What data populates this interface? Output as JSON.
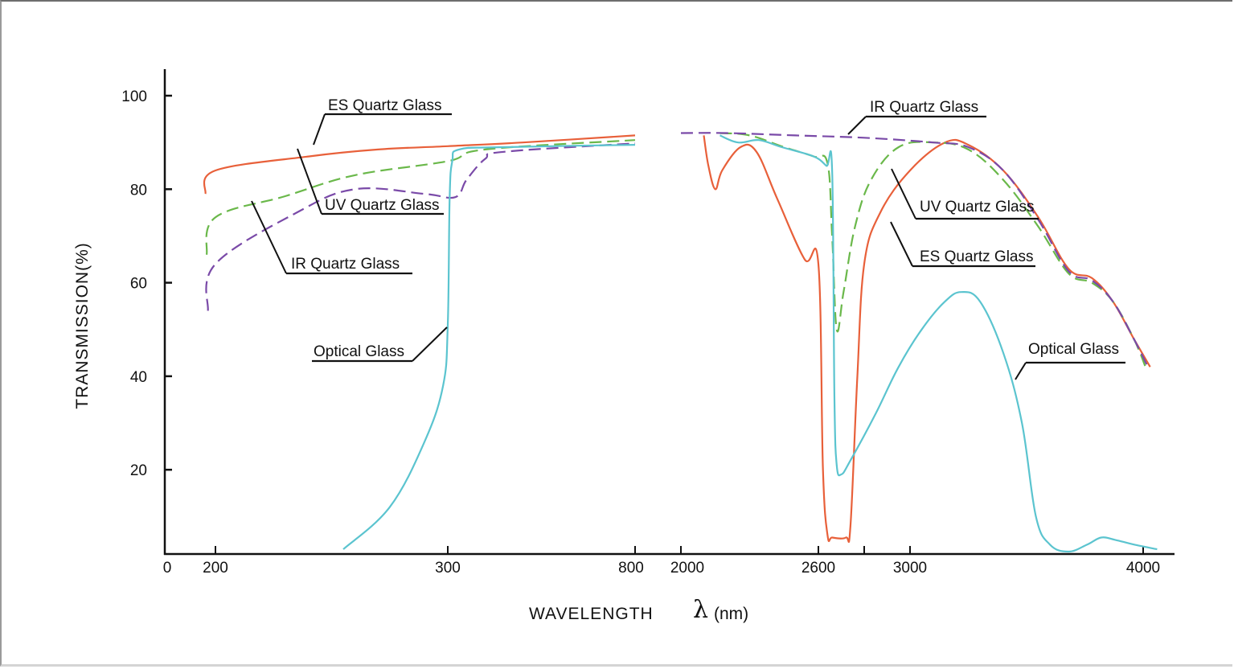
{
  "chart_data": {
    "type": "line",
    "title": "",
    "xlabel": "WAVELENGTH",
    "xlabel_symbol": "λ",
    "xlabel_unit": "(nm)",
    "ylabel": "TRANSMISSION(%)",
    "ylim": [
      0,
      100
    ],
    "y_ticks": [
      20,
      40,
      60,
      80,
      100
    ],
    "x_axis_broken": true,
    "x_tick_labels": [
      "0",
      "200",
      "300",
      "800",
      "2000",
      "2600",
      "3000",
      "4000"
    ],
    "x_ticks_unlabeled": [
      2800
    ],
    "grid": false,
    "legend": "none (inline annotations)",
    "series": [
      {
        "name": "ES Quartz Glass",
        "color": "#e8603a",
        "style": "solid",
        "points": [
          [
            160,
            79
          ],
          [
            200,
            84
          ],
          [
            240,
            87
          ],
          [
            270,
            88.5
          ],
          [
            300,
            89.2
          ],
          [
            500,
            90
          ],
          [
            800,
            91.5
          ],
          [
            2100,
            91.5
          ],
          [
            2120,
            85
          ],
          [
            2150,
            80
          ],
          [
            2180,
            84
          ],
          [
            2260,
            89
          ],
          [
            2330,
            88
          ],
          [
            2420,
            78
          ],
          [
            2540,
            65
          ],
          [
            2600,
            64
          ],
          [
            2620,
            20
          ],
          [
            2640,
            6
          ],
          [
            2660,
            5.5
          ],
          [
            2720,
            5.5
          ],
          [
            2740,
            8
          ],
          [
            2770,
            40
          ],
          [
            2800,
            64
          ],
          [
            2870,
            75
          ],
          [
            3000,
            84
          ],
          [
            3150,
            90
          ],
          [
            3250,
            89.5
          ],
          [
            3400,
            84
          ],
          [
            3550,
            74
          ],
          [
            3680,
            63
          ],
          [
            3780,
            61
          ],
          [
            3870,
            56
          ],
          [
            3960,
            48
          ],
          [
            4030,
            42
          ]
        ]
      },
      {
        "name": "UV Quartz Glass",
        "color": "#6ab84a",
        "style": "dashed",
        "points": [
          [
            165,
            66
          ],
          [
            200,
            74
          ],
          [
            230,
            78.5
          ],
          [
            260,
            83
          ],
          [
            300,
            86
          ],
          [
            400,
            88.5
          ],
          [
            800,
            90.5
          ],
          [
            2170,
            92
          ],
          [
            2300,
            91.5
          ],
          [
            2450,
            89
          ],
          [
            2580,
            87
          ],
          [
            2640,
            85.5
          ],
          [
            2660,
            70
          ],
          [
            2680,
            50
          ],
          [
            2710,
            58
          ],
          [
            2760,
            72
          ],
          [
            2830,
            82
          ],
          [
            2950,
            89
          ],
          [
            3100,
            90
          ],
          [
            3250,
            88.5
          ],
          [
            3400,
            82
          ],
          [
            3550,
            72
          ],
          [
            3680,
            62
          ],
          [
            3780,
            60
          ],
          [
            3870,
            56
          ],
          [
            3960,
            48
          ],
          [
            4010,
            42
          ]
        ]
      },
      {
        "name": "IR Quartz Glass",
        "color": "#7a4aa8",
        "style": "dashed",
        "points": [
          [
            170,
            54
          ],
          [
            200,
            64
          ],
          [
            235,
            75
          ],
          [
            260,
            80
          ],
          [
            290,
            79
          ],
          [
            320,
            78.3
          ],
          [
            350,
            82
          ],
          [
            400,
            86.5
          ],
          [
            450,
            88
          ],
          [
            800,
            89.8
          ],
          [
            2000,
            92
          ],
          [
            2200,
            92
          ],
          [
            2500,
            91.5
          ],
          [
            2800,
            91
          ],
          [
            3100,
            90
          ],
          [
            3250,
            89
          ],
          [
            3400,
            84
          ],
          [
            3550,
            73.5
          ],
          [
            3680,
            62.5
          ],
          [
            3780,
            60.5
          ],
          [
            3870,
            56
          ],
          [
            3960,
            48
          ],
          [
            4020,
            42
          ]
        ]
      },
      {
        "name": "Optical Glass",
        "color": "#5bc4cf",
        "style": "solid",
        "points": [
          [
            255,
            3
          ],
          [
            275,
            12
          ],
          [
            290,
            26
          ],
          [
            298,
            38
          ],
          [
            300,
            51
          ],
          [
            305,
            78
          ],
          [
            312,
            86
          ],
          [
            330,
            88.5
          ],
          [
            450,
            89
          ],
          [
            800,
            89.5
          ],
          [
            2170,
            91.5
          ],
          [
            2250,
            90
          ],
          [
            2340,
            90.5
          ],
          [
            2440,
            89
          ],
          [
            2580,
            87
          ],
          [
            2635,
            85
          ],
          [
            2660,
            84
          ],
          [
            2670,
            35
          ],
          [
            2680,
            21
          ],
          [
            2700,
            19
          ],
          [
            2740,
            22
          ],
          [
            2850,
            32
          ],
          [
            2950,
            42
          ],
          [
            3050,
            50
          ],
          [
            3150,
            56
          ],
          [
            3220,
            58
          ],
          [
            3300,
            56
          ],
          [
            3400,
            45
          ],
          [
            3480,
            30
          ],
          [
            3540,
            10
          ],
          [
            3600,
            4
          ],
          [
            3680,
            2.5
          ],
          [
            3760,
            4
          ],
          [
            3820,
            5.5
          ],
          [
            3880,
            5
          ],
          [
            3960,
            4
          ],
          [
            4060,
            3
          ]
        ]
      }
    ],
    "annotations": [
      {
        "text": "ES Quartz Glass",
        "series": "ES Quartz Glass",
        "region": "left"
      },
      {
        "text": "UV Quartz Glass",
        "series": "UV Quartz Glass",
        "region": "left"
      },
      {
        "text": "IR Quartz Glass",
        "series": "IR Quartz Glass",
        "region": "left"
      },
      {
        "text": "Optical  Glass",
        "series": "Optical Glass",
        "region": "left"
      },
      {
        "text": "IR Quartz Glass",
        "series": "IR Quartz Glass",
        "region": "right"
      },
      {
        "text": "UV Quartz Glass",
        "series": "UV Quartz Glass",
        "region": "right"
      },
      {
        "text": "ES Quartz Glass",
        "series": "ES Quartz Glass",
        "region": "right"
      },
      {
        "text": "Optical  Glass",
        "series": "Optical Glass",
        "region": "right"
      }
    ]
  }
}
